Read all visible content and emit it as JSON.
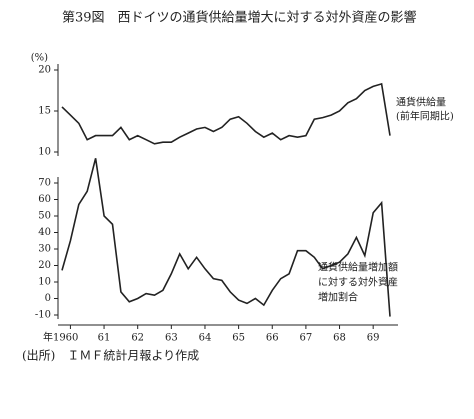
{
  "chart_data": [
    {
      "type": "line",
      "title": "第39図　西ドイツの通貨供給量増大に対する対外資産の影響",
      "y_unit": "(%)",
      "annotations": [
        "通貨供給量",
        "(前年同期比)"
      ],
      "x": [
        1959.75,
        1960,
        1960.25,
        1960.5,
        1960.75,
        1961,
        1961.25,
        1961.5,
        1961.75,
        1962,
        1962.25,
        1962.5,
        1962.75,
        1963,
        1963.25,
        1963.5,
        1963.75,
        1964,
        1964.25,
        1964.5,
        1964.75,
        1965,
        1965.25,
        1965.5,
        1965.75,
        1966,
        1966.25,
        1966.5,
        1966.75,
        1967,
        1967.25,
        1967.5,
        1967.75,
        1968,
        1968.25,
        1968.5,
        1968.75,
        1969,
        1969.25,
        1969.5
      ],
      "xlim": [
        1959.75,
        1969.5
      ],
      "series": [
        {
          "color": "#222222",
          "values": [
            15.5,
            14.5,
            13.5,
            11.5,
            12,
            12,
            12,
            13,
            11.5,
            12,
            11.5,
            11,
            11.2,
            11.2,
            11.8,
            12.3,
            12.8,
            13,
            12.5,
            13,
            14,
            14.3,
            13.5,
            12.5,
            11.8,
            12.3,
            11.5,
            12,
            11.8,
            12,
            14,
            14.2,
            14.5,
            15,
            16,
            16.5,
            17.5,
            18,
            18.3,
            12
          ]
        }
      ],
      "ylim": [
        10,
        20
      ],
      "yticks": [
        10,
        15,
        20
      ]
    },
    {
      "type": "line",
      "annotations": [
        "通貨供給量増加額",
        "に対する対外資産",
        "増加割合"
      ],
      "x": [
        1959.75,
        1960,
        1960.25,
        1960.5,
        1960.75,
        1961,
        1961.25,
        1961.5,
        1961.75,
        1962,
        1962.25,
        1962.5,
        1962.75,
        1963,
        1963.25,
        1963.5,
        1963.75,
        1964,
        1964.25,
        1964.5,
        1964.75,
        1965,
        1965.25,
        1965.5,
        1965.75,
        1966,
        1966.25,
        1966.5,
        1966.75,
        1967,
        1967.25,
        1967.5,
        1967.75,
        1968,
        1968.25,
        1968.5,
        1968.75,
        1969,
        1969.25,
        1969.5
      ],
      "xlim": [
        1959.75,
        1969.5
      ],
      "xticks": [
        {
          "value": 1960,
          "label": "年1960"
        },
        {
          "value": 1961,
          "label": "61"
        },
        {
          "value": 1962,
          "label": "62"
        },
        {
          "value": 1963,
          "label": "63"
        },
        {
          "value": 1964,
          "label": "64"
        },
        {
          "value": 1965,
          "label": "65"
        },
        {
          "value": 1966,
          "label": "66"
        },
        {
          "value": 1967,
          "label": "67"
        },
        {
          "value": 1968,
          "label": "68"
        },
        {
          "value": 1969,
          "label": "69"
        }
      ],
      "series": [
        {
          "color": "#222222",
          "values": [
            17,
            35,
            57,
            65,
            85,
            50,
            45,
            4,
            -2,
            0,
            3,
            2,
            5,
            15,
            27,
            18,
            25,
            18,
            12,
            11,
            4,
            -1,
            -3,
            0,
            -4,
            5,
            12,
            15,
            29,
            29,
            25,
            18,
            20,
            22,
            27,
            37,
            26,
            52,
            58,
            -11
          ]
        }
      ],
      "ylim": [
        -10,
        70
      ],
      "yticks": [
        -10,
        0,
        10,
        20,
        30,
        40,
        50,
        60,
        70
      ]
    }
  ],
  "source": "(出所)　ＩＭＦ統計月報より作成"
}
